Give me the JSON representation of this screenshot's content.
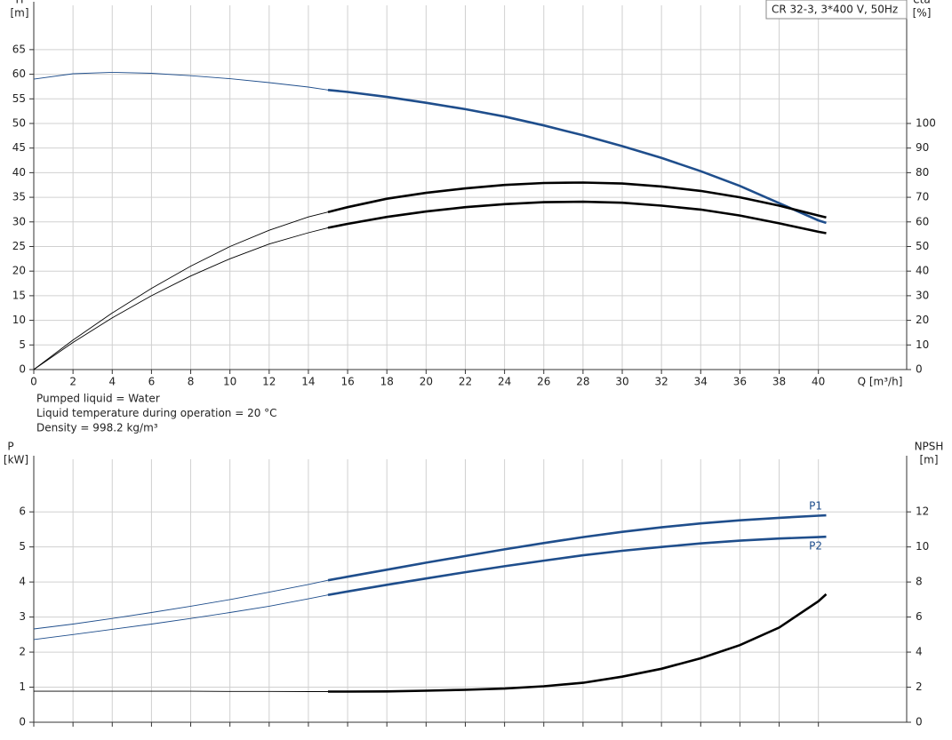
{
  "chart_data": [
    {
      "type": "line",
      "title": "CR 32-3, 3*400 V, 50Hz",
      "ylabel": "H",
      "yunit": "[m]",
      "y2label": "eta",
      "y2unit": "[%]",
      "xlabel": "Q [m³/h]",
      "notes": [
        "Pumped liquid = Water",
        "Liquid temperature during operation = 20 °C",
        "Density = 998.2 kg/m³"
      ],
      "x": [
        0,
        2,
        4,
        6,
        8,
        10,
        12,
        14,
        15,
        16,
        18,
        20,
        22,
        24,
        26,
        28,
        30,
        32,
        34,
        36,
        38,
        40,
        40.4
      ],
      "highlight_from": 15,
      "series": [
        {
          "color": "#1f4e8c",
          "values": [
            59,
            60.1,
            60.4,
            60.2,
            59.7,
            59.1,
            58.3,
            57.4,
            56.8,
            56.4,
            55.4,
            54.2,
            52.9,
            51.4,
            49.6,
            47.6,
            45.4,
            43.0,
            40.3,
            37.3,
            33.8,
            30.3,
            29.8
          ]
        },
        {
          "color": "#000000",
          "axis": "y2",
          "values": [
            0,
            12,
            23,
            33,
            42,
            50,
            56.6,
            62,
            64,
            66,
            69.4,
            71.8,
            73.6,
            75,
            75.8,
            76,
            75.6,
            74.4,
            72.6,
            70,
            66.6,
            62.6,
            61.8
          ]
        },
        {
          "color": "#000000",
          "axis": "y2",
          "values": [
            0,
            11,
            21,
            30,
            38,
            45,
            51,
            55.6,
            57.6,
            59.2,
            62,
            64.2,
            66,
            67.2,
            68,
            68.2,
            67.8,
            66.6,
            65,
            62.6,
            59.4,
            56,
            55.4
          ]
        }
      ],
      "xlim": [
        0,
        44.5
      ],
      "xticks": [
        0,
        2,
        4,
        6,
        8,
        10,
        12,
        14,
        16,
        18,
        20,
        22,
        24,
        26,
        28,
        30,
        32,
        34,
        36,
        38,
        40
      ],
      "ylim": [
        0,
        74
      ],
      "yticks": [
        0,
        5,
        10,
        15,
        20,
        25,
        30,
        35,
        40,
        45,
        50,
        55,
        60,
        65
      ],
      "y2lim": [
        0,
        148
      ],
      "y2ticks": [
        0,
        10,
        20,
        30,
        40,
        50,
        60,
        70,
        80,
        90,
        100
      ],
      "grid": true
    },
    {
      "type": "line",
      "ylabel": "P",
      "yunit": "[kW]",
      "y2label": "NPSH",
      "y2unit": "[m]",
      "x": [
        0,
        2,
        4,
        6,
        8,
        10,
        12,
        14,
        15,
        16,
        18,
        20,
        22,
        24,
        26,
        28,
        30,
        32,
        34,
        36,
        38,
        40,
        40.4
      ],
      "highlight_from": 15,
      "series": [
        {
          "name": "P1",
          "color": "#1f4e8c",
          "values": [
            2.66,
            2.8,
            2.96,
            3.13,
            3.31,
            3.5,
            3.71,
            3.93,
            4.05,
            4.15,
            4.35,
            4.55,
            4.74,
            4.93,
            5.11,
            5.28,
            5.43,
            5.56,
            5.67,
            5.76,
            5.83,
            5.89,
            5.9
          ]
        },
        {
          "name": "P2",
          "color": "#1f4e8c",
          "values": [
            2.36,
            2.5,
            2.65,
            2.8,
            2.96,
            3.13,
            3.31,
            3.52,
            3.63,
            3.73,
            3.92,
            4.1,
            4.28,
            4.45,
            4.61,
            4.76,
            4.89,
            5.0,
            5.1,
            5.18,
            5.24,
            5.28,
            5.29
          ]
        },
        {
          "color": "#000000",
          "axis": "y2",
          "values": [
            1.77,
            1.77,
            1.77,
            1.77,
            1.77,
            1.76,
            1.76,
            1.75,
            1.75,
            1.75,
            1.76,
            1.8,
            1.85,
            1.92,
            2.05,
            2.25,
            2.6,
            3.05,
            3.65,
            4.4,
            5.4,
            6.9,
            7.3
          ]
        }
      ],
      "xlim": [
        0,
        44.5
      ],
      "xticks": [
        0,
        2,
        4,
        6,
        8,
        10,
        12,
        14,
        16,
        18,
        20,
        22,
        24,
        26,
        28,
        30,
        32,
        34,
        36,
        38,
        40
      ],
      "xtick_labels": false,
      "ylim": [
        0,
        7.5
      ],
      "yticks": [
        0,
        1,
        2,
        3,
        4,
        5,
        6
      ],
      "y2lim": [
        0,
        15
      ],
      "y2ticks": [
        0,
        2,
        4,
        6,
        8,
        10,
        12
      ],
      "grid": true
    }
  ]
}
